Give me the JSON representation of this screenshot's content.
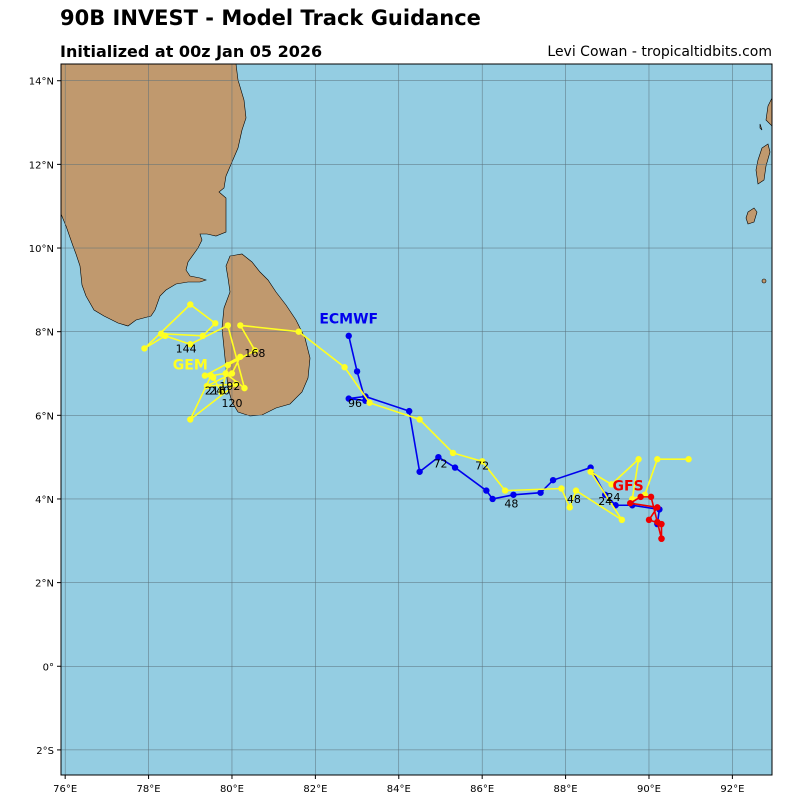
{
  "title": "90B INVEST - Model Track Guidance",
  "subtitle": "Initialized at 00z Jan 05 2026",
  "credit": "Levi Cowan - tropicaltidbits.com",
  "colors": {
    "ocean": "#94cde2",
    "land": "#c0996e",
    "grid": "#5a6f7a",
    "ecmwf": "#0000ee",
    "gem": "#ffff22",
    "gfs": "#ee0000"
  },
  "map": {
    "lon_min": 75.9,
    "lon_max": 92.95,
    "lat_min": -2.6,
    "lat_max": 14.4,
    "lon_ticks": [
      76,
      78,
      80,
      82,
      84,
      86,
      88,
      90,
      92
    ],
    "lon_tick_labels": [
      "76°E",
      "78°E",
      "80°E",
      "82°E",
      "84°E",
      "86°E",
      "88°E",
      "90°E",
      "92°E"
    ],
    "lat_ticks": [
      -2,
      0,
      2,
      4,
      6,
      8,
      10,
      12,
      14
    ],
    "lat_tick_labels": [
      "2°S",
      "0°",
      "2°N",
      "4°N",
      "6°N",
      "8°N",
      "10°N",
      "12°N",
      "14°N"
    ]
  },
  "chart_data": {
    "type": "scatter",
    "models": [
      {
        "name": "ECMWF",
        "color": "#0000ee",
        "track": [
          [
            90.2,
            3.4
          ],
          [
            90.25,
            3.75
          ],
          [
            89.6,
            3.85
          ],
          [
            89.2,
            3.85
          ],
          [
            88.95,
            4.1
          ],
          [
            88.6,
            4.75
          ],
          [
            87.7,
            4.45
          ],
          [
            87.4,
            4.15
          ],
          [
            86.75,
            4.1
          ],
          [
            86.25,
            4.0
          ],
          [
            86.1,
            4.2
          ],
          [
            85.35,
            4.75
          ],
          [
            84.95,
            5.0
          ],
          [
            84.5,
            4.65
          ],
          [
            84.25,
            6.1
          ],
          [
            83.2,
            6.45
          ],
          [
            82.8,
            6.4
          ],
          [
            83.2,
            6.35
          ],
          [
            83.0,
            7.05
          ],
          [
            82.8,
            7.9
          ]
        ],
        "label_lon": 82.8,
        "label_lat": 8.2,
        "step_labels": [
          {
            "text": "72",
            "lon": 85.0,
            "lat": 4.75
          },
          {
            "text": "48",
            "lon": 86.7,
            "lat": 3.8
          },
          {
            "text": "96",
            "lon": 82.95,
            "lat": 6.2
          }
        ]
      },
      {
        "name": "GEM",
        "color": "#ffff22",
        "track": [
          [
            90.95,
            4.95
          ],
          [
            90.2,
            4.95
          ],
          [
            89.9,
            4.1
          ],
          [
            89.6,
            4.0
          ],
          [
            89.75,
            4.95
          ],
          [
            89.1,
            4.35
          ],
          [
            88.6,
            4.65
          ],
          [
            89.35,
            3.5
          ],
          [
            88.25,
            4.2
          ],
          [
            88.1,
            3.8
          ],
          [
            87.9,
            4.25
          ],
          [
            86.55,
            4.2
          ],
          [
            86.0,
            4.9
          ],
          [
            85.3,
            5.1
          ],
          [
            84.5,
            5.9
          ],
          [
            83.3,
            6.3
          ],
          [
            82.7,
            7.15
          ],
          [
            81.6,
            8.0
          ],
          [
            80.2,
            8.15
          ],
          [
            80.55,
            7.55
          ],
          [
            79.9,
            7.2
          ],
          [
            79.75,
            6.55
          ],
          [
            79.55,
            6.9
          ],
          [
            79.35,
            6.95
          ],
          [
            80.2,
            7.4
          ],
          [
            80.0,
            7.0
          ],
          [
            79.4,
            6.7
          ],
          [
            80.1,
            6.75
          ],
          [
            79.0,
            5.9
          ],
          [
            79.5,
            6.95
          ],
          [
            79.85,
            7.0
          ],
          [
            80.3,
            6.65
          ],
          [
            79.9,
            8.15
          ],
          [
            79.0,
            7.7
          ],
          [
            78.4,
            7.9
          ],
          [
            77.9,
            7.6
          ],
          [
            79.0,
            8.65
          ],
          [
            79.6,
            8.2
          ],
          [
            79.3,
            7.9
          ],
          [
            78.3,
            7.95
          ]
        ],
        "label_lon": 79.0,
        "label_lat": 7.1,
        "step_labels": [
          {
            "text": "72",
            "lon": 86.0,
            "lat": 4.7
          },
          {
            "text": "48",
            "lon": 88.2,
            "lat": 3.9
          },
          {
            "text": "24",
            "lon": 88.95,
            "lat": 3.85
          },
          {
            "text": "168",
            "lon": 80.55,
            "lat": 7.4
          },
          {
            "text": "144",
            "lon": 78.9,
            "lat": 7.5
          },
          {
            "text": "120",
            "lon": 80.0,
            "lat": 6.2
          },
          {
            "text": "192",
            "lon": 79.95,
            "lat": 6.6
          },
          {
            "text": "216",
            "lon": 79.6,
            "lat": 6.5
          },
          {
            "text": "240",
            "lon": 79.7,
            "lat": 6.5
          }
        ]
      },
      {
        "name": "GFS",
        "color": "#ee0000",
        "track": [
          [
            90.3,
            3.05
          ],
          [
            90.3,
            3.4
          ],
          [
            90.0,
            3.5
          ],
          [
            90.2,
            3.8
          ],
          [
            89.55,
            3.9
          ],
          [
            89.8,
            4.05
          ],
          [
            90.05,
            4.05
          ],
          [
            90.2,
            3.45
          ],
          [
            90.3,
            3.05
          ]
        ],
        "label_lon": 89.5,
        "label_lat": 4.2,
        "step_labels": [
          {
            "text": "24",
            "lon": 89.15,
            "lat": 3.95
          }
        ]
      }
    ]
  }
}
